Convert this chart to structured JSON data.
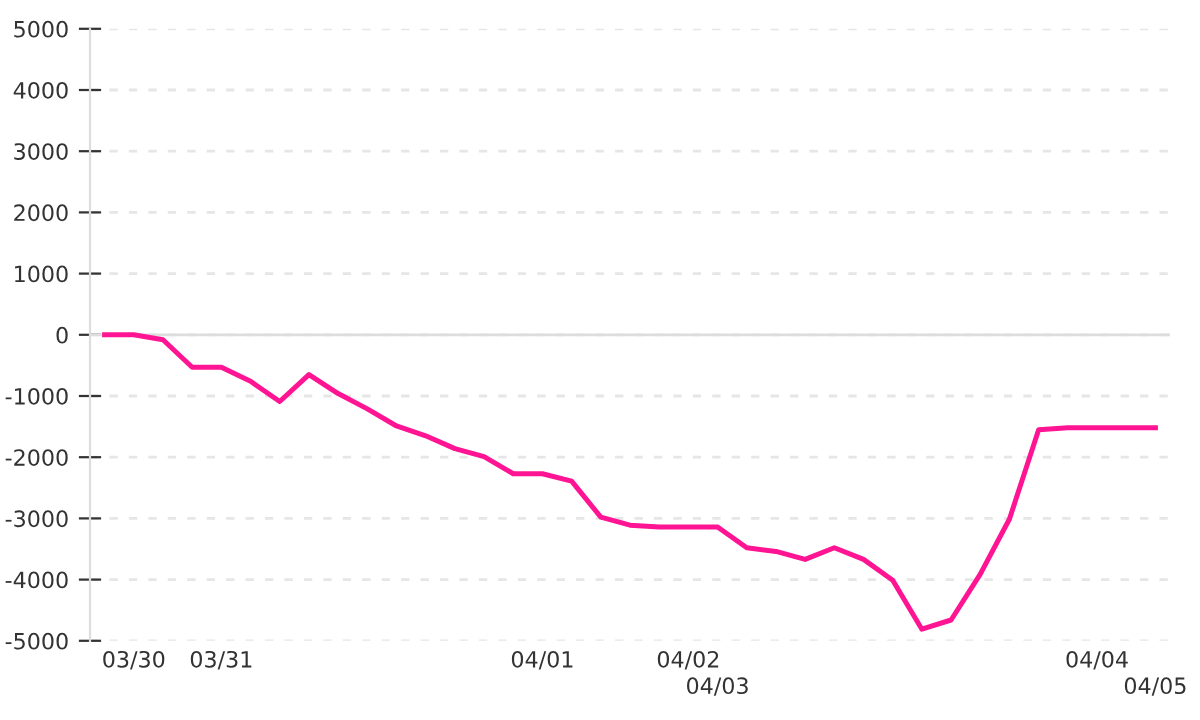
{
  "chart_data": {
    "type": "line",
    "categories": [
      null,
      "03/30",
      null,
      null,
      "03/31",
      null,
      null,
      null,
      null,
      null,
      null,
      null,
      null,
      null,
      null,
      "04/01",
      null,
      null,
      null,
      null,
      "04/02",
      "04/03",
      null,
      null,
      null,
      null,
      null,
      null,
      null,
      null,
      null,
      null,
      null,
      null,
      "04/04",
      null,
      "04/05"
    ],
    "series": [
      {
        "color": "#ff1493",
        "values": [
          0,
          0,
          -80,
          -530,
          -530,
          -760,
          -1090,
          -650,
          -960,
          -1210,
          -1490,
          -1650,
          -1860,
          -1990,
          -2270,
          -2270,
          -2390,
          -2980,
          -3110,
          -3140,
          -3140,
          -3140,
          -3480,
          -3540,
          -3670,
          -3480,
          -3670,
          -4010,
          -4810,
          -4660,
          -3910,
          -3010,
          -1550,
          -1520,
          -1520,
          -1520,
          -1520
        ]
      }
    ],
    "ylim": [
      -5000,
      5000
    ],
    "yticks": [
      -5000,
      -4000,
      -3000,
      -2000,
      -1000,
      0,
      1000,
      2000,
      3000,
      4000,
      5000
    ],
    "grid": "y",
    "marker": "none",
    "line_style": "solid",
    "legend": false,
    "ref_lines": [
      {
        "axis": "y",
        "value": 0,
        "color": "#dddddd",
        "line_style": "solid"
      }
    ]
  }
}
